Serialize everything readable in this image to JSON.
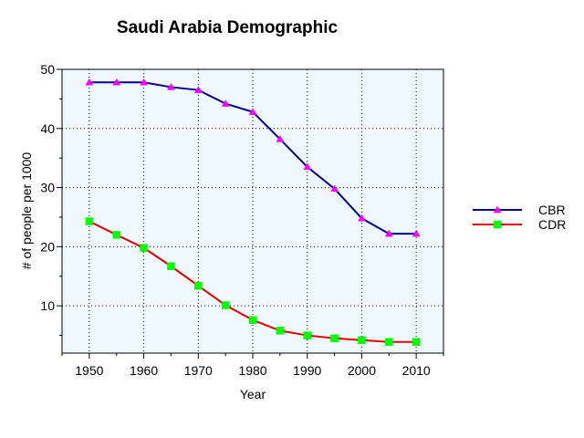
{
  "chart_data": {
    "type": "line",
    "title": "Saudi Arabia Demographic",
    "xlabel": "Year",
    "ylabel": "# of people per 1000",
    "x": [
      1950,
      1955,
      1960,
      1965,
      1970,
      1975,
      1980,
      1985,
      1990,
      1995,
      2000,
      2005,
      2010
    ],
    "xticks": [
      1950,
      1960,
      1970,
      1980,
      1990,
      2000,
      2010
    ],
    "yticks": [
      10,
      20,
      30,
      40,
      50
    ],
    "xlim": [
      1945,
      2015
    ],
    "ylim": [
      2,
      50
    ],
    "grid": true,
    "legend_position": "right",
    "plot_background": "#f0f8ff",
    "series": [
      {
        "name": "CBR",
        "line_color": "#00008b",
        "marker_color": "#ff00ff",
        "marker": "triangle",
        "values": [
          47.8,
          47.8,
          47.8,
          47.0,
          46.5,
          44.2,
          42.8,
          38.2,
          33.5,
          29.8,
          24.8,
          22.2,
          22.2
        ]
      },
      {
        "name": "CDR",
        "line_color": "#e00000",
        "marker_color": "#00ff00",
        "marker": "square",
        "values": [
          24.3,
          22.0,
          19.8,
          16.7,
          13.4,
          10.1,
          7.6,
          5.8,
          5.0,
          4.5,
          4.2,
          3.9,
          3.9
        ]
      }
    ]
  }
}
